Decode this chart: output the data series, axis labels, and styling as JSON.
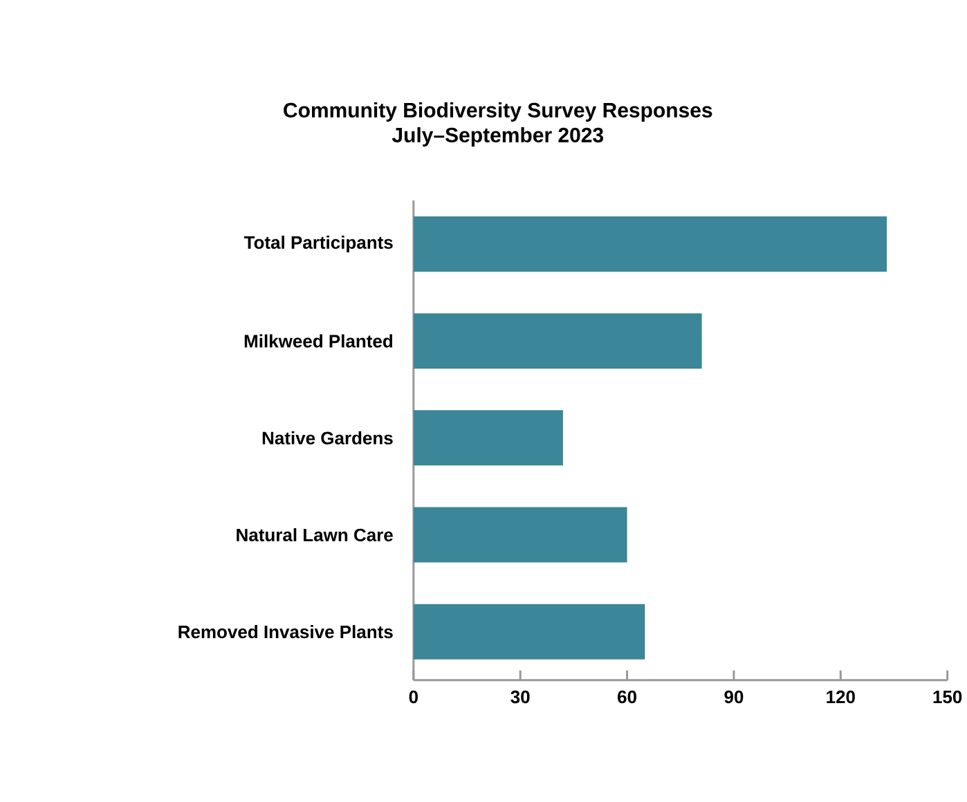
{
  "chart_data": {
    "type": "bar",
    "orientation": "horizontal",
    "title": "Community Biodiversity Survey Responses",
    "subtitle": "July–September 2023",
    "categories": [
      "Total Participants",
      "Milkweed Planted",
      "Native Gardens",
      "Natural Lawn Care",
      "Removed Invasive Plants"
    ],
    "values": [
      133,
      81,
      42,
      60,
      65
    ],
    "color": "#3b8698",
    "xlim": [
      0,
      150
    ],
    "xticks": [
      0,
      30,
      60,
      90,
      120,
      150
    ]
  }
}
